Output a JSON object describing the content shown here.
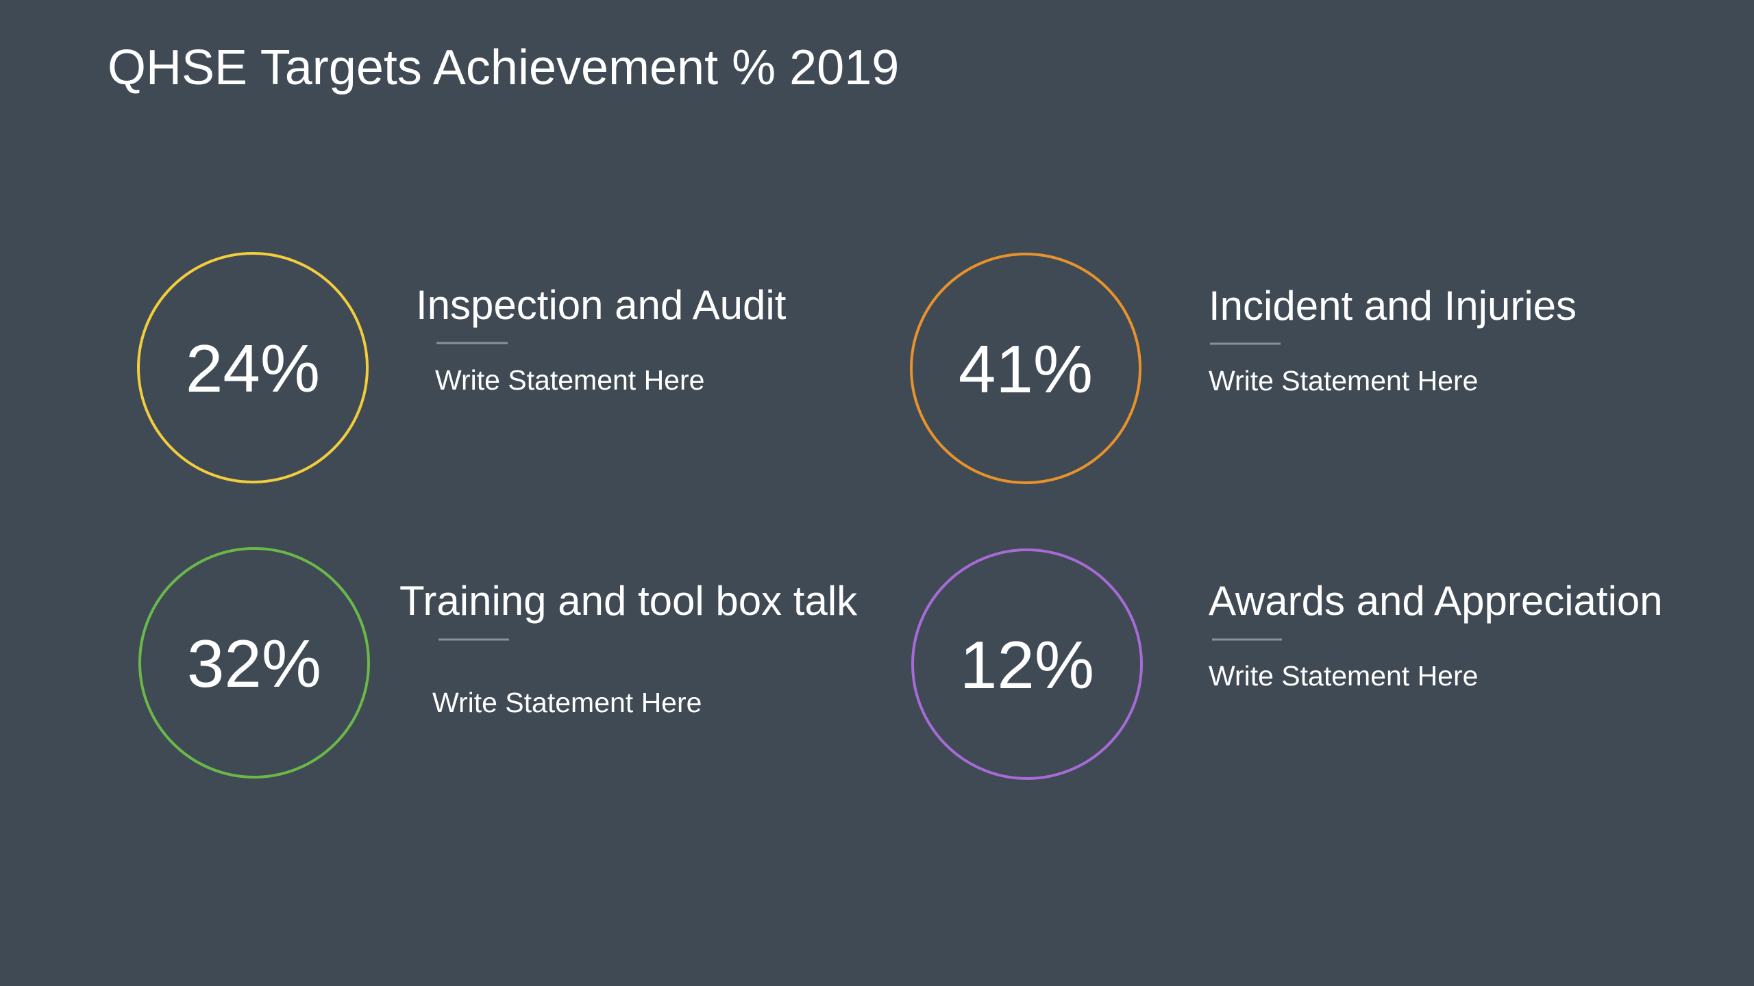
{
  "header": {
    "title": "QHSE Targets Achievement % 2019"
  },
  "items": [
    {
      "percent": "24%",
      "heading": "Inspection and Audit",
      "statement": "Write Statement Here"
    },
    {
      "percent": "41%",
      "heading": "Incident and Injuries",
      "statement": "Write Statement Here"
    },
    {
      "percent": "32%",
      "heading": "Training and tool box talk",
      "statement": "Write Statement Here"
    },
    {
      "percent": "12%",
      "heading": "Awards and Appreciation",
      "statement": "Write Statement Here"
    }
  ]
}
